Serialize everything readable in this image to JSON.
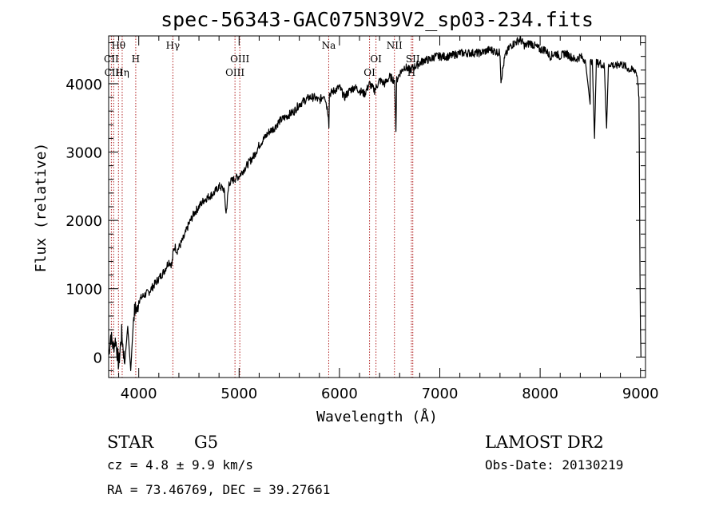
{
  "chart_data": {
    "type": "line",
    "title": "spec-56343-GAC075N39V2_sp03-234.fits",
    "xlabel": "Wavelength (Å)",
    "ylabel": "Flux (relative)",
    "xlim": [
      3700,
      9050
    ],
    "ylim": [
      -300,
      4700
    ],
    "xticks": [
      4000,
      5000,
      6000,
      7000,
      8000,
      9000
    ],
    "yticks": [
      0,
      1000,
      2000,
      3000,
      4000
    ],
    "grid": false,
    "series": [
      {
        "x": [
          3700,
          3720,
          3745,
          3770,
          3800,
          3830,
          3860,
          3890,
          3920,
          3950,
          3970,
          3985,
          4000,
          4050,
          4100,
          4150,
          4200,
          4250,
          4300,
          4330,
          4345,
          4360,
          4380,
          4400,
          4450,
          4500,
          4550,
          4600,
          4650,
          4700,
          4750,
          4800,
          4850,
          4870,
          4900,
          4950,
          5000,
          5050,
          5100,
          5150,
          5200,
          5250,
          5300,
          5350,
          5400,
          5450,
          5500,
          5550,
          5600,
          5650,
          5700,
          5750,
          5800,
          5850,
          5890,
          5895,
          5900,
          5950,
          6000,
          6050,
          6100,
          6150,
          6200,
          6250,
          6300,
          6350,
          6400,
          6450,
          6500,
          6550,
          6563,
          6570,
          6600,
          6650,
          6700,
          6750,
          6800,
          6850,
          6900,
          6950,
          7000,
          7100,
          7200,
          7300,
          7400,
          7500,
          7600,
          7610,
          7650,
          7700,
          7750,
          7800,
          7850,
          7900,
          7950,
          8000,
          8050,
          8100,
          8150,
          8200,
          8250,
          8300,
          8350,
          8400,
          8450,
          8498,
          8500,
          8520,
          8542,
          8560,
          8600,
          8640,
          8662,
          8680,
          8700,
          8750,
          8800,
          8850,
          8900,
          8950,
          8970,
          8985,
          8995,
          9000,
          9005
        ],
        "y": [
          30,
          320,
          150,
          250,
          -120,
          350,
          -100,
          450,
          -200,
          620,
          720,
          680,
          830,
          900,
          950,
          1050,
          1150,
          1250,
          1400,
          1350,
          1550,
          1620,
          1550,
          1600,
          1750,
          1950,
          2100,
          2200,
          2300,
          2350,
          2400,
          2500,
          2450,
          2100,
          2550,
          2600,
          2650,
          2750,
          2850,
          2950,
          3100,
          3200,
          3300,
          3350,
          3450,
          3500,
          3550,
          3600,
          3700,
          3750,
          3800,
          3800,
          3750,
          3850,
          3550,
          3400,
          3850,
          3900,
          3950,
          3800,
          3900,
          3950,
          3900,
          3850,
          4000,
          3900,
          4050,
          4000,
          4100,
          4050,
          3300,
          4050,
          4150,
          4250,
          4200,
          4250,
          4300,
          4350,
          4350,
          4400,
          4400,
          4400,
          4450,
          4450,
          4450,
          4500,
          4450,
          4050,
          4400,
          4550,
          4600,
          4650,
          4550,
          4600,
          4550,
          4500,
          4500,
          4400,
          4450,
          4400,
          4450,
          4400,
          4350,
          4400,
          4350,
          3700,
          4300,
          4350,
          3200,
          4300,
          4300,
          4250,
          3350,
          4250,
          4300,
          4250,
          4300,
          4250,
          4200,
          4200,
          4100,
          3800,
          1200,
          400,
          0
        ]
      }
    ],
    "spectral_lines": [
      {
        "label": "Hθ",
        "x": 3798,
        "row": 1
      },
      {
        "label": "CII",
        "x": 3727,
        "row": 2
      },
      {
        "label": "H",
        "x": 3970,
        "row": 2
      },
      {
        "label": "CIII",
        "x": 3750,
        "row": 3
      },
      {
        "label": "Hη",
        "x": 3835,
        "row": 3
      },
      {
        "label": "Hγ",
        "x": 4340,
        "row": 1
      },
      {
        "label": "OIII",
        "x": 5007,
        "row": 2
      },
      {
        "label": "OIII",
        "x": 4959,
        "row": 3
      },
      {
        "label": "Na",
        "x": 5893,
        "row": 1
      },
      {
        "label": "OI",
        "x": 6364,
        "row": 2
      },
      {
        "label": "OI",
        "x": 6300,
        "row": 3
      },
      {
        "label": "NII",
        "x": 6548,
        "row": 1
      },
      {
        "label": "SII",
        "x": 6731,
        "row": 2
      },
      {
        "label": "H",
        "x": 6717,
        "row": 3
      }
    ]
  },
  "info": {
    "class": "STAR",
    "subclass": "G5",
    "survey": "LAMOST DR2",
    "cz": "cz = 4.8 ± 9.9 km/s",
    "obs_date": "Obs-Date: 20130219",
    "coords": "RA =  73.46769, DEC =  39.27661"
  },
  "colors": {
    "line_marker": "#b22222",
    "spectrum": "#000000"
  }
}
